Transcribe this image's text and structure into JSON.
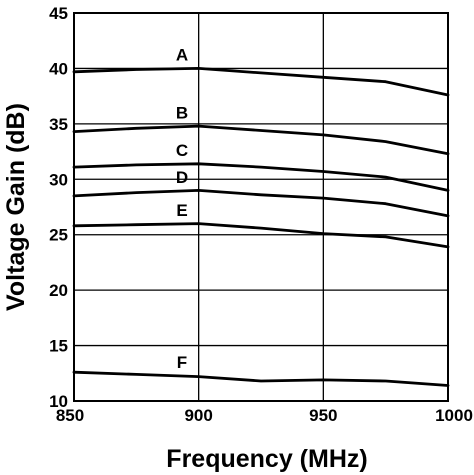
{
  "chart_data": {
    "type": "line",
    "title": "",
    "xlabel": "Frequency (MHz)",
    "ylabel": "Voltage Gain (dB)",
    "xlim": [
      850,
      1000
    ],
    "ylim": [
      10,
      45
    ],
    "x_ticks": [
      "850",
      "900",
      "950",
      "1000"
    ],
    "y_ticks": [
      "10",
      "15",
      "20",
      "25",
      "30",
      "35",
      "40",
      "45"
    ],
    "grid": true,
    "series": [
      {
        "name": "A",
        "x": [
          850,
          875,
          900,
          925,
          950,
          975,
          1000
        ],
        "values": [
          39.7,
          39.9,
          40.0,
          39.6,
          39.2,
          38.8,
          37.6
        ]
      },
      {
        "name": "B",
        "x": [
          850,
          875,
          900,
          925,
          950,
          975,
          1000
        ],
        "values": [
          34.3,
          34.6,
          34.8,
          34.4,
          34.0,
          33.4,
          32.3
        ]
      },
      {
        "name": "C",
        "x": [
          850,
          875,
          900,
          925,
          950,
          975,
          1000
        ],
        "values": [
          31.1,
          31.3,
          31.4,
          31.1,
          30.7,
          30.2,
          29.0
        ]
      },
      {
        "name": "D",
        "x": [
          850,
          875,
          900,
          925,
          950,
          975,
          1000
        ],
        "values": [
          28.5,
          28.8,
          29.0,
          28.6,
          28.3,
          27.8,
          26.7
        ]
      },
      {
        "name": "E",
        "x": [
          850,
          875,
          900,
          925,
          950,
          975,
          1000
        ],
        "values": [
          25.8,
          25.9,
          26.0,
          25.6,
          25.1,
          24.8,
          23.9
        ]
      },
      {
        "name": "F",
        "x": [
          850,
          875,
          900,
          925,
          950,
          975,
          1000
        ],
        "values": [
          12.6,
          12.4,
          12.2,
          11.8,
          11.9,
          11.8,
          11.4
        ]
      }
    ]
  }
}
